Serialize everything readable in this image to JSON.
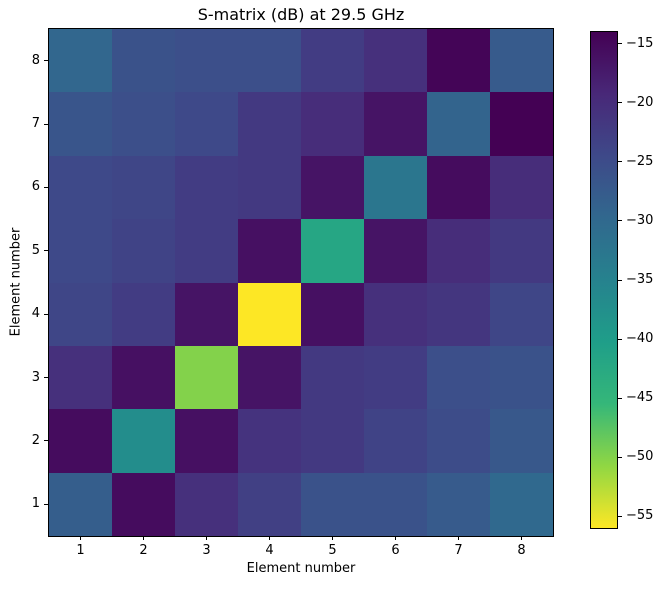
{
  "figure": {
    "background_color": "#ffffff",
    "text_color": "#000000"
  },
  "chart_data": {
    "type": "heatmap",
    "title": "S-matrix (dB) at 29.5 GHz",
    "xlabel": "Element number",
    "ylabel": "Element number",
    "x_tick_labels": [
      "1",
      "2",
      "3",
      "4",
      "5",
      "6",
      "7",
      "8"
    ],
    "y_tick_labels_bottom_to_top": [
      "1",
      "2",
      "3",
      "4",
      "5",
      "6",
      "7",
      "8"
    ],
    "unit": "dB",
    "vmax": -14,
    "vmin": -56,
    "grid": "off",
    "legend": "none",
    "matrix_row_order": "element 1 (bottom row of plot) to element 8 (top row of plot)",
    "matrix": [
      [
        -28,
        -15.5,
        -20.5,
        -23,
        -26,
        -26,
        -27.5,
        -30
      ],
      [
        -15.5,
        -37,
        -16,
        -21,
        -22,
        -23.5,
        -25,
        -27
      ],
      [
        -20.5,
        -16,
        -50,
        -16.5,
        -22,
        -22.5,
        -25.5,
        -26
      ],
      [
        -24,
        -22.5,
        -16.5,
        -56,
        -16,
        -20.5,
        -21.5,
        -24
      ],
      [
        -24.5,
        -23.5,
        -22.5,
        -16,
        -42,
        -16.5,
        -20,
        -22
      ],
      [
        -24.5,
        -24,
        -22.5,
        -22,
        -16.5,
        -32.5,
        -15.5,
        -20
      ],
      [
        -26.5,
        -25.5,
        -24.5,
        -22,
        -20,
        -16.5,
        -29,
        -14
      ],
      [
        -29.5,
        -26,
        -25.5,
        -25.5,
        -22.5,
        -20.5,
        -14.5,
        -27.5
      ]
    ],
    "colormap": {
      "description": "viridis with reversed value mapping: vmax (-14 dB) renders dark purple, vmin (-56 dB) renders yellow",
      "viridis_stops": [
        {
          "t": 0.0,
          "color": "#440154"
        },
        {
          "t": 0.125,
          "color": "#482878"
        },
        {
          "t": 0.25,
          "color": "#3e4989"
        },
        {
          "t": 0.375,
          "color": "#31688e"
        },
        {
          "t": 0.5,
          "color": "#26828e"
        },
        {
          "t": 0.625,
          "color": "#1f9e89"
        },
        {
          "t": 0.75,
          "color": "#35b779"
        },
        {
          "t": 0.875,
          "color": "#90d743"
        },
        {
          "t": 1.0,
          "color": "#fde725"
        }
      ]
    },
    "colorbar": {
      "position": "right",
      "tick_labels": [
        "−15",
        "−20",
        "−25",
        "−30",
        "−35",
        "−40",
        "−45",
        "−50",
        "−55"
      ],
      "tick_values": [
        -15,
        -20,
        -25,
        -30,
        -35,
        -40,
        -45,
        -50,
        -55
      ]
    }
  },
  "layout_text": {
    "minus_sign": "−"
  }
}
